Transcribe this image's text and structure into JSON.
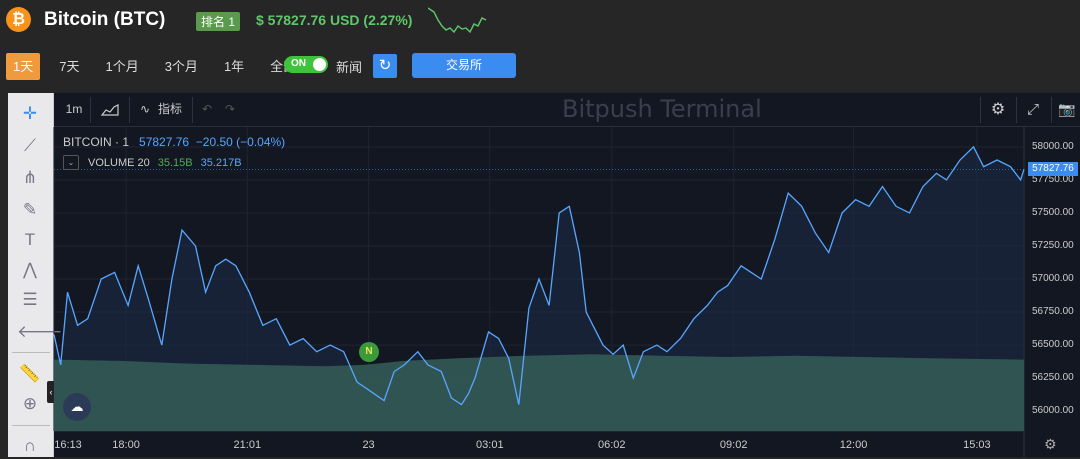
{
  "header": {
    "coin_symbol_icon": "bitcoin-icon",
    "coin_glyph": "₿",
    "title": "Bitcoin (BTC)",
    "rank": "排名 1",
    "price": "$ 57827.76 USD (2.27%)",
    "accent_green": "#5ec86a",
    "brand_orange": "#f7931a"
  },
  "periods": [
    {
      "label": "1天",
      "active": true
    },
    {
      "label": "7天",
      "active": false
    },
    {
      "label": "1个月",
      "active": false
    },
    {
      "label": "3个月",
      "active": false
    },
    {
      "label": "1年",
      "active": false
    },
    {
      "label": "全部",
      "active": false
    }
  ],
  "news_toggle": {
    "state": "ON",
    "label": "新闻"
  },
  "refresh_glyph": "↻",
  "exchange_button": "交易所",
  "toolbar": {
    "interval": "1m",
    "indicators": "指标",
    "watermark": "Bitpush Terminal",
    "undo_glyph": "↶",
    "redo_glyph": "↷"
  },
  "legend": {
    "symbol": "BITCOIN · 1",
    "price": "57827.76",
    "change": "−20.50 (−0.04%)",
    "volume_label": "VOLUME 20",
    "volume_1": "35.15B",
    "volume_2": "35.217B"
  },
  "news_marker": "N",
  "last_price_label": "57827.76",
  "chart_data": {
    "type": "line",
    "title": "",
    "xlabel": "",
    "ylabel": "",
    "ylim": [
      55850,
      58150
    ],
    "x_ticks": [
      {
        "label": "16:13",
        "x": 0
      },
      {
        "label": "18:00",
        "x": 107
      },
      {
        "label": "21:01",
        "x": 287
      },
      {
        "label": "23",
        "x": 467
      },
      {
        "label": "03:01",
        "x": 647
      },
      {
        "label": "06:02",
        "x": 828
      },
      {
        "label": "09:02",
        "x": 1009
      },
      {
        "label": "12:00",
        "x": 1187
      },
      {
        "label": "15:03",
        "x": 1370
      }
    ],
    "y_ticks": [
      "58000.00",
      "57750.00",
      "57500.00",
      "57250.00",
      "57000.00",
      "56750.00",
      "56500.00",
      "56250.00",
      "56000.00"
    ],
    "y_tick_values": [
      58000,
      57750,
      57500,
      57250,
      57000,
      56750,
      56500,
      56250,
      56000
    ],
    "x_range": [
      0,
      1440
    ],
    "series": [
      {
        "values": [
          [
            0,
            56580
          ],
          [
            10,
            56350
          ],
          [
            20,
            56900
          ],
          [
            35,
            56650
          ],
          [
            50,
            56700
          ],
          [
            70,
            57000
          ],
          [
            90,
            57050
          ],
          [
            110,
            56800
          ],
          [
            125,
            57100
          ],
          [
            140,
            56850
          ],
          [
            160,
            56500
          ],
          [
            175,
            57000
          ],
          [
            190,
            57370
          ],
          [
            210,
            57250
          ],
          [
            225,
            56900
          ],
          [
            240,
            57100
          ],
          [
            255,
            57150
          ],
          [
            270,
            57100
          ],
          [
            290,
            56900
          ],
          [
            310,
            56650
          ],
          [
            330,
            56700
          ],
          [
            350,
            56500
          ],
          [
            370,
            56550
          ],
          [
            390,
            56450
          ],
          [
            410,
            56500
          ],
          [
            430,
            56450
          ],
          [
            450,
            56220
          ],
          [
            470,
            56150
          ],
          [
            490,
            56080
          ],
          [
            505,
            56300
          ],
          [
            520,
            56350
          ],
          [
            540,
            56450
          ],
          [
            555,
            56350
          ],
          [
            575,
            56300
          ],
          [
            590,
            56100
          ],
          [
            605,
            56050
          ],
          [
            615,
            56130
          ],
          [
            625,
            56250
          ],
          [
            645,
            56600
          ],
          [
            660,
            56550
          ],
          [
            675,
            56400
          ],
          [
            690,
            56050
          ],
          [
            705,
            56780
          ],
          [
            720,
            57000
          ],
          [
            735,
            56800
          ],
          [
            750,
            57500
          ],
          [
            765,
            57550
          ],
          [
            780,
            57200
          ],
          [
            790,
            56750
          ],
          [
            800,
            56650
          ],
          [
            815,
            56500
          ],
          [
            830,
            56430
          ],
          [
            845,
            56500
          ],
          [
            860,
            56250
          ],
          [
            875,
            56450
          ],
          [
            895,
            56500
          ],
          [
            910,
            56450
          ],
          [
            930,
            56550
          ],
          [
            950,
            56700
          ],
          [
            970,
            56800
          ],
          [
            985,
            56900
          ],
          [
            1000,
            56950
          ],
          [
            1020,
            57100
          ],
          [
            1035,
            57050
          ],
          [
            1050,
            57000
          ],
          [
            1070,
            57300
          ],
          [
            1090,
            57650
          ],
          [
            1110,
            57550
          ],
          [
            1130,
            57350
          ],
          [
            1150,
            57200
          ],
          [
            1170,
            57500
          ],
          [
            1190,
            57600
          ],
          [
            1210,
            57550
          ],
          [
            1230,
            57700
          ],
          [
            1250,
            57550
          ],
          [
            1270,
            57500
          ],
          [
            1290,
            57700
          ],
          [
            1310,
            57800
          ],
          [
            1325,
            57750
          ],
          [
            1345,
            57900
          ],
          [
            1365,
            58000
          ],
          [
            1380,
            57850
          ],
          [
            1400,
            57900
          ],
          [
            1420,
            57850
          ],
          [
            1435,
            57750
          ],
          [
            1440,
            57830
          ]
        ]
      },
      {
        "name": "VOLUME 20",
        "volume_values": [
          [
            0,
            56390
          ],
          [
            100,
            56380
          ],
          [
            200,
            56360
          ],
          [
            300,
            56350
          ],
          [
            400,
            56340
          ],
          [
            460,
            56350
          ],
          [
            520,
            56380
          ],
          [
            600,
            56400
          ],
          [
            700,
            56420
          ],
          [
            800,
            56430
          ],
          [
            900,
            56420
          ],
          [
            1000,
            56410
          ],
          [
            1100,
            56420
          ],
          [
            1200,
            56410
          ],
          [
            1300,
            56400
          ],
          [
            1440,
            56390
          ]
        ]
      }
    ],
    "grid": true,
    "colors": {
      "line": "#58a6ff",
      "volume": "#335a55",
      "background": "#131722"
    }
  }
}
